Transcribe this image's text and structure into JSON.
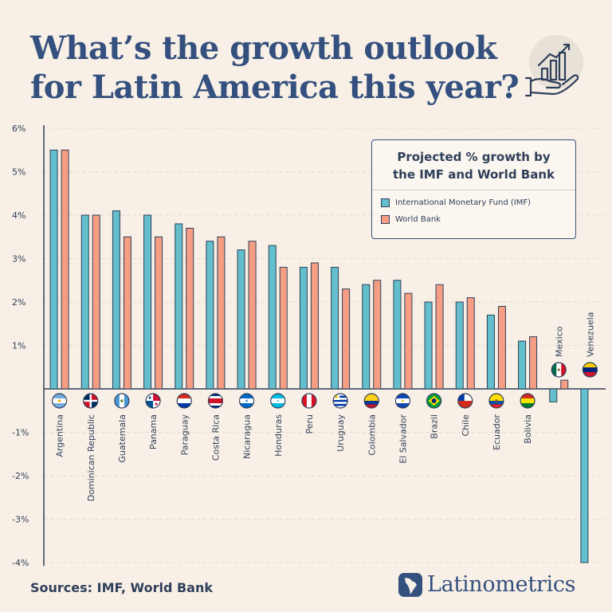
{
  "title_lines": [
    "What’s the growth outlook",
    "for Latin America this year?"
  ],
  "legend": {
    "title_lines": [
      "Projected % growth by",
      "the IMF and World Bank"
    ],
    "items": [
      {
        "label": "International Monetary Fund (IMF)",
        "color": "#62bfcb"
      },
      {
        "label": "World Bank",
        "color": "#f59e83"
      }
    ]
  },
  "sources": "Sources: IMF, World Bank",
  "brand": "Latinometrics",
  "colors": {
    "axis": "#2f3f5a",
    "grid": "#e3d9cc",
    "title": "#34507e"
  },
  "icons": {
    "growth": "hand-with-growth-chart-icon",
    "brand": "latin-america-map-logo-icon"
  },
  "chart_data": {
    "type": "bar",
    "ylim": [
      -4,
      6
    ],
    "y_ticks": [
      6,
      5,
      4,
      3,
      2,
      1,
      -1,
      -2,
      -3,
      -4
    ],
    "y_tick_labels": [
      "6%",
      "5%",
      "4%",
      "3%",
      "2%",
      "1%",
      "-1%",
      "-2%",
      "-3%",
      "-4%"
    ],
    "grid": true,
    "legend_position": "top-right",
    "categories": [
      "Argentina",
      "Dominican Republic",
      "Guatemala",
      "Panama",
      "Paraguay",
      "Costa Rica",
      "Nicaragua",
      "Honduras",
      "Peru",
      "Uruguay",
      "Colombia",
      "El Salvador",
      "Brazil",
      "Chile",
      "Ecuador",
      "Bolivia",
      "Mexico",
      "Venezuela"
    ],
    "series": [
      {
        "name": "International Monetary Fund (IMF)",
        "values": [
          5.5,
          4.0,
          4.1,
          4.0,
          3.8,
          3.4,
          3.2,
          3.3,
          2.8,
          2.8,
          2.4,
          2.5,
          2.0,
          2.0,
          1.7,
          1.1,
          -0.3,
          -4.0
        ]
      },
      {
        "name": "World Bank",
        "values": [
          5.5,
          4.0,
          3.5,
          3.5,
          3.7,
          3.5,
          3.4,
          2.8,
          2.9,
          2.3,
          2.5,
          2.2,
          2.4,
          2.1,
          1.9,
          1.2,
          0.2,
          null
        ]
      }
    ],
    "flags": [
      "argentina-flag-icon",
      "dominican-republic-flag-icon",
      "guatemala-flag-icon",
      "panama-flag-icon",
      "paraguay-flag-icon",
      "costa-rica-flag-icon",
      "nicaragua-flag-icon",
      "honduras-flag-icon",
      "peru-flag-icon",
      "uruguay-flag-icon",
      "colombia-flag-icon",
      "el-salvador-flag-icon",
      "brazil-flag-icon",
      "chile-flag-icon",
      "ecuador-flag-icon",
      "bolivia-flag-icon",
      "mexico-flag-icon",
      "venezuela-flag-icon"
    ]
  }
}
